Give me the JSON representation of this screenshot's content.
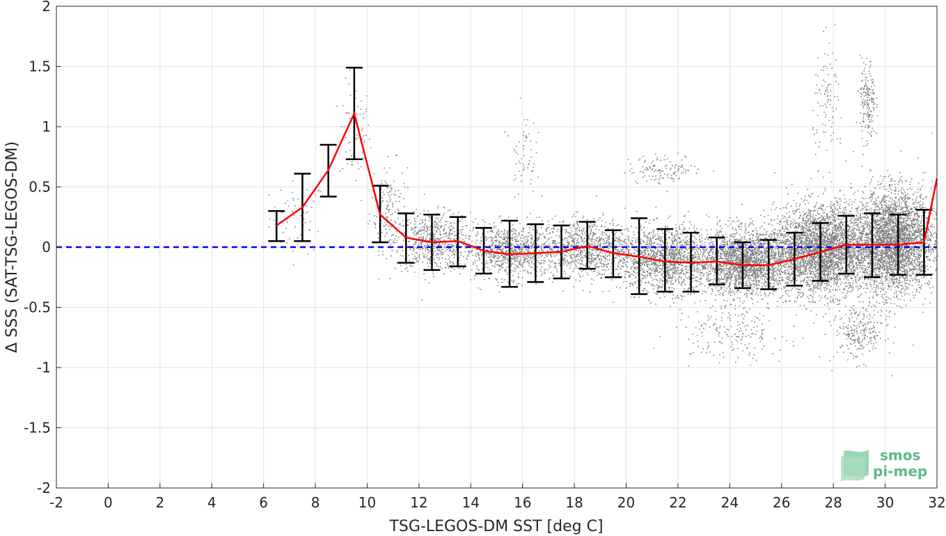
{
  "chart_data": {
    "type": "scatter",
    "xlabel": "TSG-LEGOS-DM SST [deg C]",
    "ylabel": "Δ SSS (SAT-TSG-LEGOS-DM)",
    "xlim": [
      -2,
      32
    ],
    "ylim": [
      -2,
      2
    ],
    "xticks": [
      -2,
      0,
      2,
      4,
      6,
      8,
      10,
      12,
      14,
      16,
      18,
      20,
      22,
      24,
      26,
      28,
      30,
      32
    ],
    "yticks": [
      2,
      1.5,
      1,
      0.5,
      0,
      -0.5,
      -1,
      -1.5,
      -2
    ],
    "grid": true,
    "colors": {
      "scatter": "#808080",
      "mean_line": "#ff0000",
      "error_bars": "#000000",
      "zero_line": "#0000ff"
    },
    "zero_line": {
      "y": 0,
      "style": "dashed"
    },
    "bins": [
      {
        "x": 6.5,
        "mean": 0.18,
        "low": 0.05,
        "high": 0.3
      },
      {
        "x": 7.5,
        "mean": 0.33,
        "low": 0.05,
        "high": 0.61
      },
      {
        "x": 8.5,
        "mean": 0.64,
        "low": 0.42,
        "high": 0.85
      },
      {
        "x": 9.5,
        "mean": 1.11,
        "low": 0.73,
        "high": 1.49
      },
      {
        "x": 10.5,
        "mean": 0.27,
        "low": 0.04,
        "high": 0.51
      },
      {
        "x": 11.5,
        "mean": 0.08,
        "low": -0.13,
        "high": 0.28
      },
      {
        "x": 12.5,
        "mean": 0.04,
        "low": -0.19,
        "high": 0.27
      },
      {
        "x": 13.5,
        "mean": 0.05,
        "low": -0.16,
        "high": 0.25
      },
      {
        "x": 14.5,
        "mean": -0.03,
        "low": -0.22,
        "high": 0.16
      },
      {
        "x": 15.5,
        "mean": -0.06,
        "low": -0.33,
        "high": 0.22
      },
      {
        "x": 16.5,
        "mean": -0.05,
        "low": -0.29,
        "high": 0.19
      },
      {
        "x": 17.5,
        "mean": -0.04,
        "low": -0.26,
        "high": 0.18
      },
      {
        "x": 18.5,
        "mean": 0.01,
        "low": -0.18,
        "high": 0.21
      },
      {
        "x": 19.5,
        "mean": -0.05,
        "low": -0.25,
        "high": 0.14
      },
      {
        "x": 20.5,
        "mean": -0.08,
        "low": -0.39,
        "high": 0.24
      },
      {
        "x": 21.5,
        "mean": -0.12,
        "low": -0.37,
        "high": 0.15
      },
      {
        "x": 22.5,
        "mean": -0.13,
        "low": -0.37,
        "high": 0.12
      },
      {
        "x": 23.5,
        "mean": -0.12,
        "low": -0.31,
        "high": 0.08
      },
      {
        "x": 24.5,
        "mean": -0.15,
        "low": -0.34,
        "high": 0.04
      },
      {
        "x": 25.5,
        "mean": -0.15,
        "low": -0.35,
        "high": 0.06
      },
      {
        "x": 26.5,
        "mean": -0.1,
        "low": -0.32,
        "high": 0.12
      },
      {
        "x": 27.5,
        "mean": -0.04,
        "low": -0.28,
        "high": 0.2
      },
      {
        "x": 28.5,
        "mean": 0.02,
        "low": -0.22,
        "high": 0.26
      },
      {
        "x": 29.5,
        "mean": 0.02,
        "low": -0.25,
        "high": 0.28
      },
      {
        "x": 30.5,
        "mean": 0.02,
        "low": -0.23,
        "high": 0.27
      },
      {
        "x": 31.5,
        "mean": 0.04,
        "low": -0.23,
        "high": 0.31
      },
      {
        "x": 32.0,
        "mean": 0.57
      }
    ],
    "scatter_clusters": [
      {
        "x": 7.3,
        "y": 0.25,
        "sx": 0.9,
        "sy": 0.25,
        "n": 60
      },
      {
        "x": 9.5,
        "y": 0.95,
        "sx": 0.5,
        "sy": 0.35,
        "n": 70
      },
      {
        "x": 10.8,
        "y": 0.35,
        "sx": 0.6,
        "sy": 0.3,
        "n": 140
      },
      {
        "x": 12.5,
        "y": 0.05,
        "sx": 1.2,
        "sy": 0.2,
        "n": 600
      },
      {
        "x": 15.5,
        "y": -0.03,
        "sx": 1.5,
        "sy": 0.18,
        "n": 900
      },
      {
        "x": 18.5,
        "y": 0.0,
        "sx": 1.5,
        "sy": 0.2,
        "n": 900
      },
      {
        "x": 21.5,
        "y": -0.1,
        "sx": 1.5,
        "sy": 0.22,
        "n": 1400
      },
      {
        "x": 24.5,
        "y": -0.12,
        "sx": 1.5,
        "sy": 0.22,
        "n": 2200
      },
      {
        "x": 27.5,
        "y": -0.02,
        "sx": 1.5,
        "sy": 0.3,
        "n": 3200
      },
      {
        "x": 30.3,
        "y": 0.05,
        "sx": 1.3,
        "sy": 0.35,
        "n": 3400
      },
      {
        "x": 21.5,
        "y": 0.65,
        "sx": 1.2,
        "sy": 0.1,
        "n": 120
      },
      {
        "x": 16.0,
        "y": 0.8,
        "sx": 0.4,
        "sy": 0.3,
        "n": 60
      },
      {
        "x": 29.3,
        "y": 1.2,
        "sx": 0.25,
        "sy": 0.3,
        "n": 180
      },
      {
        "x": 27.8,
        "y": 1.2,
        "sx": 0.5,
        "sy": 0.4,
        "n": 100
      },
      {
        "x": 24.0,
        "y": -0.7,
        "sx": 1.8,
        "sy": 0.2,
        "n": 200
      },
      {
        "x": 29.0,
        "y": -0.7,
        "sx": 0.8,
        "sy": 0.2,
        "n": 250
      }
    ],
    "logo": {
      "line1": "smos",
      "line2": "pi-mep"
    }
  }
}
